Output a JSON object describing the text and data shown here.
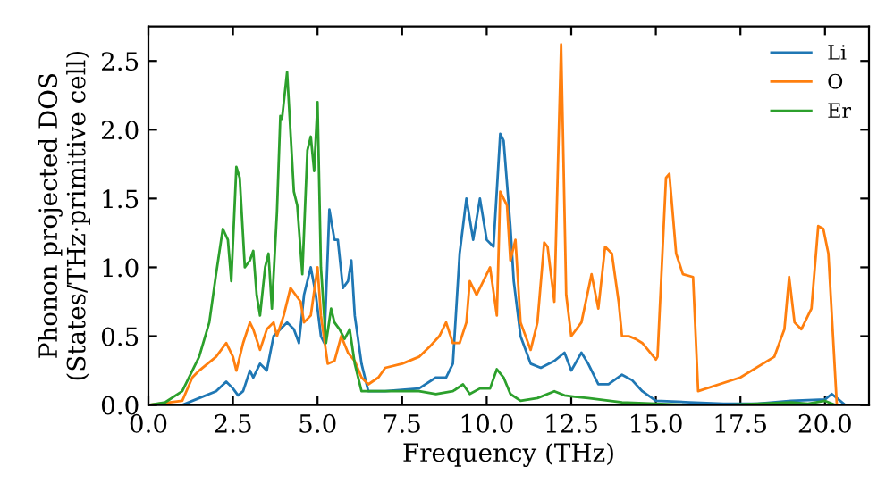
{
  "chart_data": {
    "type": "line",
    "xlabel": "Frequency (THz)",
    "ylabel": "Phonon projected DOS\n(States/THz·primitive cell)",
    "xlim": [
      0,
      21.3
    ],
    "ylim": [
      0,
      2.75
    ],
    "xticks": [
      {
        "value": 0,
        "label": "0.0"
      },
      2.5,
      {
        "value": 5,
        "label": "5.0"
      },
      {
        "value": 7.5,
        "label": "7.5"
      },
      {
        "value": 10,
        "label": "10.0"
      },
      12.5,
      {
        "value": 15,
        "label": "15.0"
      },
      17.5,
      {
        "value": 20,
        "label": "20.0"
      }
    ],
    "yticks": [
      {
        "value": 0,
        "label": "0.0"
      },
      0.5,
      {
        "value": 1,
        "label": "1.0"
      },
      1.5,
      {
        "value": 2,
        "label": "2.0"
      },
      2.5
    ],
    "legend": "top right",
    "grid": false,
    "marker": "none",
    "line_style": "solid",
    "series": [
      {
        "name": "Li",
        "color": "#1f77b4",
        "x": [
          0,
          1,
          1.5,
          2,
          2.3,
          2.5,
          2.65,
          2.8,
          3,
          3.1,
          3.3,
          3.5,
          3.7,
          3.9,
          4.1,
          4.3,
          4.45,
          4.6,
          4.8,
          4.95,
          5.1,
          5.2,
          5.35,
          5.5,
          5.6,
          5.75,
          5.9,
          6,
          6.1,
          6.3,
          6.5,
          7,
          8,
          8.5,
          8.8,
          9,
          9.2,
          9.4,
          9.6,
          9.8,
          10,
          10.2,
          10.4,
          10.5,
          10.7,
          10.8,
          11,
          11.3,
          11.6,
          12,
          12.3,
          12.5,
          12.8,
          13,
          13.3,
          13.6,
          14,
          14.3,
          14.6,
          15,
          16,
          17,
          18,
          19,
          20,
          20.2,
          20.4,
          20.6
        ],
        "values": [
          0,
          0,
          0.05,
          0.1,
          0.17,
          0.12,
          0.07,
          0.1,
          0.25,
          0.2,
          0.3,
          0.25,
          0.5,
          0.55,
          0.6,
          0.55,
          0.45,
          0.8,
          1.0,
          0.8,
          0.5,
          0.45,
          1.42,
          1.2,
          1.2,
          0.85,
          0.9,
          1.05,
          0.65,
          0.3,
          0.1,
          0.1,
          0.12,
          0.2,
          0.2,
          0.3,
          1.1,
          1.5,
          1.2,
          1.5,
          1.2,
          1.15,
          1.97,
          1.92,
          1.3,
          0.9,
          0.5,
          0.3,
          0.27,
          0.32,
          0.38,
          0.25,
          0.38,
          0.3,
          0.15,
          0.15,
          0.22,
          0.18,
          0.1,
          0.03,
          0.02,
          0.01,
          0.01,
          0.03,
          0.04,
          0.08,
          0.04,
          0
        ]
      },
      {
        "name": "O",
        "color": "#ff7f0e",
        "x": [
          0,
          1,
          1.3,
          1.5,
          2,
          2.3,
          2.5,
          2.6,
          2.8,
          3,
          3.1,
          3.3,
          3.5,
          3.7,
          3.8,
          4,
          4.2,
          4.35,
          4.5,
          4.6,
          4.8,
          5,
          5.1,
          5.3,
          5.5,
          5.7,
          5.9,
          6.1,
          6.3,
          6.5,
          6.8,
          7,
          7.5,
          8,
          8.3,
          8.6,
          8.8,
          9,
          9.2,
          9.4,
          9.5,
          9.7,
          10,
          10.1,
          10.3,
          10.4,
          10.6,
          10.7,
          10.85,
          11,
          11.3,
          11.5,
          11.7,
          11.8,
          12,
          12.2,
          12.35,
          12.5,
          12.8,
          13.1,
          13.3,
          13.5,
          13.7,
          13.9,
          14,
          14.2,
          14.4,
          14.6,
          15,
          15.05,
          15.3,
          15.4,
          15.6,
          15.8,
          16.1,
          16.25,
          17.5,
          18.5,
          18.8,
          18.94,
          19.1,
          19.3,
          19.6,
          19.8,
          19.95,
          20.1,
          20.35
        ],
        "values": [
          0,
          0.03,
          0.2,
          0.25,
          0.35,
          0.45,
          0.35,
          0.25,
          0.45,
          0.6,
          0.55,
          0.4,
          0.55,
          0.6,
          0.5,
          0.65,
          0.85,
          0.8,
          0.75,
          0.6,
          0.65,
          1.0,
          0.65,
          0.3,
          0.32,
          0.5,
          0.38,
          0.32,
          0.2,
          0.15,
          0.2,
          0.27,
          0.3,
          0.35,
          0.42,
          0.5,
          0.6,
          0.45,
          0.45,
          0.6,
          0.9,
          0.8,
          0.95,
          1.0,
          0.65,
          1.55,
          1.45,
          1.05,
          1.2,
          0.6,
          0.4,
          0.6,
          1.18,
          1.15,
          0.75,
          2.62,
          0.8,
          0.5,
          0.6,
          0.95,
          0.7,
          1.15,
          1.1,
          0.75,
          0.5,
          0.5,
          0.48,
          0.45,
          0.33,
          0.35,
          1.65,
          1.68,
          1.1,
          0.95,
          0.93,
          0.1,
          0.2,
          0.35,
          0.55,
          0.93,
          0.6,
          0.55,
          0.7,
          1.3,
          1.28,
          1.1,
          0
        ]
      },
      {
        "name": "Er",
        "color": "#2ca02c",
        "x": [
          0,
          0.5,
          1,
          1.5,
          1.8,
          2,
          2.2,
          2.35,
          2.45,
          2.6,
          2.7,
          2.85,
          3,
          3.1,
          3.2,
          3.3,
          3.45,
          3.55,
          3.65,
          3.8,
          3.9,
          3.95,
          4.1,
          4.3,
          4.4,
          4.55,
          4.7,
          4.8,
          4.9,
          5,
          5.1,
          5.25,
          5.4,
          5.5,
          5.65,
          5.8,
          5.95,
          6.1,
          6.3,
          7,
          8,
          8.5,
          9,
          9.3,
          9.5,
          9.8,
          10.1,
          10.3,
          10.5,
          10.7,
          11,
          11.5,
          12,
          12.3,
          12.6,
          13,
          14,
          15,
          16,
          17,
          18,
          19,
          19.5,
          20,
          20.3
        ],
        "values": [
          0,
          0.02,
          0.1,
          0.35,
          0.6,
          0.95,
          1.28,
          1.2,
          0.9,
          1.73,
          1.65,
          1.0,
          1.05,
          1.12,
          0.8,
          0.65,
          1.0,
          1.1,
          0.7,
          1.4,
          2.1,
          2.08,
          2.42,
          1.55,
          1.45,
          0.95,
          1.85,
          1.95,
          1.7,
          2.2,
          1.0,
          0.45,
          0.7,
          0.6,
          0.55,
          0.48,
          0.55,
          0.3,
          0.1,
          0.1,
          0.1,
          0.08,
          0.1,
          0.15,
          0.08,
          0.12,
          0.12,
          0.26,
          0.2,
          0.08,
          0.03,
          0.05,
          0.1,
          0.07,
          0.06,
          0.05,
          0.02,
          0.01,
          0,
          0,
          0.01,
          0.02,
          0.01,
          0.03,
          0
        ]
      }
    ]
  }
}
